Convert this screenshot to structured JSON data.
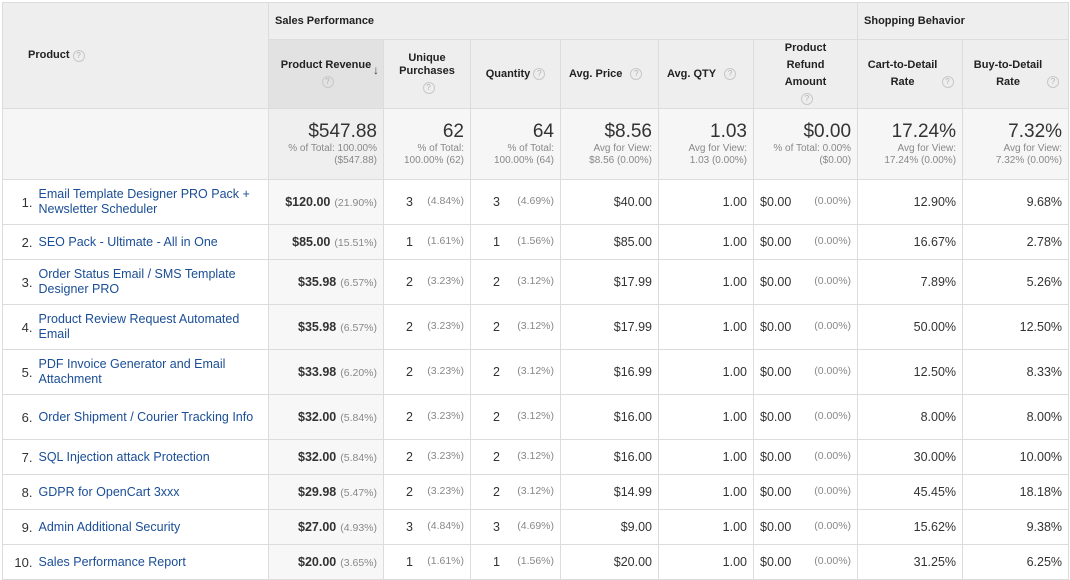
{
  "header": {
    "product": "Product",
    "sales_performance": "Sales Performance",
    "shopping_behavior": "Shopping Behavior",
    "help_glyph": "?",
    "sort_glyph": "↓",
    "columns": {
      "product_revenue": "Product Revenue",
      "unique_purchases": "Unique Purchases",
      "quantity": "Quantity",
      "avg_price": "Avg. Price",
      "avg_qty": "Avg. QTY",
      "product_refund_amount": "Product Refund Amount",
      "cart_to_detail_rate": "Cart-to-Detail Rate",
      "buy_to_detail_rate": "Buy-to-Detail Rate"
    }
  },
  "totals": {
    "product_revenue": {
      "value": "$547.88",
      "sub1": "% of Total: 100.00%",
      "sub2": "($547.88)"
    },
    "unique_purchases": {
      "value": "62",
      "sub1": "% of Total:",
      "sub2": "100.00% (62)"
    },
    "quantity": {
      "value": "64",
      "sub1": "% of Total:",
      "sub2": "100.00% (64)"
    },
    "avg_price": {
      "value": "$8.56",
      "sub1": "Avg for View:",
      "sub2": "$8.56 (0.00%)"
    },
    "avg_qty": {
      "value": "1.03",
      "sub1": "Avg for View:",
      "sub2": "1.03 (0.00%)"
    },
    "product_refund_amount": {
      "value": "$0.00",
      "sub1": "% of Total: 0.00%",
      "sub2": "($0.00)"
    },
    "cart_to_detail_rate": {
      "value": "17.24%",
      "sub1": "Avg for View:",
      "sub2": "17.24% (0.00%)"
    },
    "buy_to_detail_rate": {
      "value": "7.32%",
      "sub1": "Avg for View:",
      "sub2": "7.32% (0.00%)"
    }
  },
  "rows": [
    {
      "n": "1.",
      "product": "Email Template Designer PRO Pack + Newsletter Scheduler",
      "revenue": "$120.00",
      "revenue_pct": "(21.90%)",
      "unique": "3",
      "unique_pct": "(4.84%)",
      "qty": "3",
      "qty_pct": "(4.69%)",
      "avg_price": "$40.00",
      "avg_qty": "1.00",
      "refund": "$0.00",
      "refund_pct": "(0.00%)",
      "c2d": "12.90%",
      "b2d": "9.68%"
    },
    {
      "n": "2.",
      "product": "SEO Pack - Ultimate - All in One",
      "revenue": "$85.00",
      "revenue_pct": "(15.51%)",
      "unique": "1",
      "unique_pct": "(1.61%)",
      "qty": "1",
      "qty_pct": "(1.56%)",
      "avg_price": "$85.00",
      "avg_qty": "1.00",
      "refund": "$0.00",
      "refund_pct": "(0.00%)",
      "c2d": "16.67%",
      "b2d": "2.78%"
    },
    {
      "n": "3.",
      "product": "Order Status Email / SMS Template Designer PRO",
      "revenue": "$35.98",
      "revenue_pct": "(6.57%)",
      "unique": "2",
      "unique_pct": "(3.23%)",
      "qty": "2",
      "qty_pct": "(3.12%)",
      "avg_price": "$17.99",
      "avg_qty": "1.00",
      "refund": "$0.00",
      "refund_pct": "(0.00%)",
      "c2d": "7.89%",
      "b2d": "5.26%"
    },
    {
      "n": "4.",
      "product": "Product Review Request Automated Email",
      "revenue": "$35.98",
      "revenue_pct": "(6.57%)",
      "unique": "2",
      "unique_pct": "(3.23%)",
      "qty": "2",
      "qty_pct": "(3.12%)",
      "avg_price": "$17.99",
      "avg_qty": "1.00",
      "refund": "$0.00",
      "refund_pct": "(0.00%)",
      "c2d": "50.00%",
      "b2d": "12.50%"
    },
    {
      "n": "5.",
      "product": "PDF Invoice Generator and Email Attachment",
      "revenue": "$33.98",
      "revenue_pct": "(6.20%)",
      "unique": "2",
      "unique_pct": "(3.23%)",
      "qty": "2",
      "qty_pct": "(3.12%)",
      "avg_price": "$16.99",
      "avg_qty": "1.00",
      "refund": "$0.00",
      "refund_pct": "(0.00%)",
      "c2d": "12.50%",
      "b2d": "8.33%"
    },
    {
      "n": "6.",
      "product": "Order Shipment / Courier Tracking Info",
      "revenue": "$32.00",
      "revenue_pct": "(5.84%)",
      "unique": "2",
      "unique_pct": "(3.23%)",
      "qty": "2",
      "qty_pct": "(3.12%)",
      "avg_price": "$16.00",
      "avg_qty": "1.00",
      "refund": "$0.00",
      "refund_pct": "(0.00%)",
      "c2d": "8.00%",
      "b2d": "8.00%"
    },
    {
      "n": "7.",
      "product": "SQL Injection attack Protection",
      "revenue": "$32.00",
      "revenue_pct": "(5.84%)",
      "unique": "2",
      "unique_pct": "(3.23%)",
      "qty": "2",
      "qty_pct": "(3.12%)",
      "avg_price": "$16.00",
      "avg_qty": "1.00",
      "refund": "$0.00",
      "refund_pct": "(0.00%)",
      "c2d": "30.00%",
      "b2d": "10.00%"
    },
    {
      "n": "8.",
      "product": "GDPR for OpenCart 3xxx",
      "revenue": "$29.98",
      "revenue_pct": "(5.47%)",
      "unique": "2",
      "unique_pct": "(3.23%)",
      "qty": "2",
      "qty_pct": "(3.12%)",
      "avg_price": "$14.99",
      "avg_qty": "1.00",
      "refund": "$0.00",
      "refund_pct": "(0.00%)",
      "c2d": "45.45%",
      "b2d": "18.18%"
    },
    {
      "n": "9.",
      "product": "Admin Additional Security",
      "revenue": "$27.00",
      "revenue_pct": "(4.93%)",
      "unique": "3",
      "unique_pct": "(4.84%)",
      "qty": "3",
      "qty_pct": "(4.69%)",
      "avg_price": "$9.00",
      "avg_qty": "1.00",
      "refund": "$0.00",
      "refund_pct": "(0.00%)",
      "c2d": "15.62%",
      "b2d": "9.38%"
    },
    {
      "n": "10.",
      "product": "Sales Performance Report",
      "revenue": "$20.00",
      "revenue_pct": "(3.65%)",
      "unique": "1",
      "unique_pct": "(1.61%)",
      "qty": "1",
      "qty_pct": "(1.56%)",
      "avg_price": "$20.00",
      "avg_qty": "1.00",
      "refund": "$0.00",
      "refund_pct": "(0.00%)",
      "c2d": "31.25%",
      "b2d": "6.25%"
    }
  ]
}
